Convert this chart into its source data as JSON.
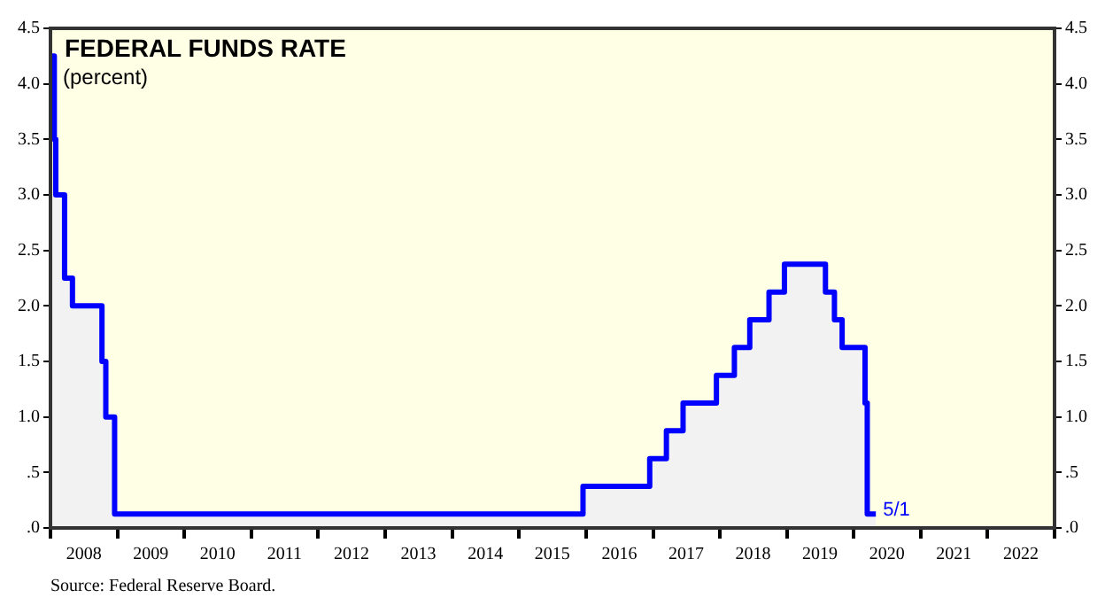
{
  "chart_data": {
    "type": "area",
    "title": "FEDERAL FUNDS RATE",
    "subtitle": "(percent)",
    "x": [
      "2008-01-01",
      "2008-01-22",
      "2008-01-22",
      "2008-01-30",
      "2008-01-30",
      "2008-03-18",
      "2008-03-18",
      "2008-04-30",
      "2008-04-30",
      "2008-10-08",
      "2008-10-08",
      "2008-10-29",
      "2008-10-29",
      "2008-12-16",
      "2008-12-16",
      "2015-12-16",
      "2015-12-16",
      "2016-12-14",
      "2016-12-14",
      "2017-03-15",
      "2017-03-15",
      "2017-06-14",
      "2017-06-14",
      "2017-12-13",
      "2017-12-13",
      "2018-03-21",
      "2018-03-21",
      "2018-06-13",
      "2018-06-13",
      "2018-09-26",
      "2018-09-26",
      "2018-12-19",
      "2018-12-19",
      "2019-07-31",
      "2019-07-31",
      "2019-09-18",
      "2019-09-18",
      "2019-10-30",
      "2019-10-30",
      "2020-03-03",
      "2020-03-03",
      "2020-03-15",
      "2020-03-15",
      "2020-05-01"
    ],
    "series": [
      {
        "color": "#0000ff",
        "values": [
          4.25,
          4.25,
          3.5,
          3.5,
          3.0,
          3.0,
          2.25,
          2.25,
          2.0,
          2.0,
          1.5,
          1.5,
          1.0,
          1.0,
          0.125,
          0.125,
          0.375,
          0.375,
          0.625,
          0.625,
          0.875,
          0.875,
          1.125,
          1.125,
          1.375,
          1.375,
          1.625,
          1.625,
          1.875,
          1.875,
          2.125,
          2.125,
          2.375,
          2.375,
          2.125,
          2.125,
          1.875,
          1.875,
          1.625,
          1.625,
          1.125,
          1.125,
          0.125,
          0.125
        ]
      }
    ],
    "xlim": [
      "2008-01-01",
      "2023-01-01"
    ],
    "xticks": [
      {
        "value": "2008-01-01",
        "label": null
      },
      {
        "value": "2008-07-01",
        "label": "2008"
      },
      {
        "value": "2009-01-01",
        "label": null
      },
      {
        "value": "2009-07-01",
        "label": "2009"
      },
      {
        "value": "2010-01-01",
        "label": null
      },
      {
        "value": "2010-07-01",
        "label": "2010"
      },
      {
        "value": "2011-01-01",
        "label": null
      },
      {
        "value": "2011-07-01",
        "label": "2011"
      },
      {
        "value": "2012-01-01",
        "label": null
      },
      {
        "value": "2012-07-01",
        "label": "2012"
      },
      {
        "value": "2013-01-01",
        "label": null
      },
      {
        "value": "2013-07-01",
        "label": "2013"
      },
      {
        "value": "2014-01-01",
        "label": null
      },
      {
        "value": "2014-07-01",
        "label": "2014"
      },
      {
        "value": "2015-01-01",
        "label": null
      },
      {
        "value": "2015-07-01",
        "label": "2015"
      },
      {
        "value": "2016-01-01",
        "label": null
      },
      {
        "value": "2016-07-01",
        "label": "2016"
      },
      {
        "value": "2017-01-01",
        "label": null
      },
      {
        "value": "2017-07-01",
        "label": "2017"
      },
      {
        "value": "2018-01-01",
        "label": null
      },
      {
        "value": "2018-07-01",
        "label": "2018"
      },
      {
        "value": "2019-01-01",
        "label": null
      },
      {
        "value": "2019-07-01",
        "label": "2019"
      },
      {
        "value": "2020-01-01",
        "label": null
      },
      {
        "value": "2020-07-01",
        "label": "2020"
      },
      {
        "value": "2021-01-01",
        "label": null
      },
      {
        "value": "2021-07-01",
        "label": "2021"
      },
      {
        "value": "2022-01-01",
        "label": null
      },
      {
        "value": "2022-07-01",
        "label": "2022"
      },
      {
        "value": "2023-01-01",
        "label": null
      }
    ],
    "ylim": [
      0,
      4.5
    ],
    "yticks": [
      {
        "value": 0,
        "label": ".0"
      },
      {
        "value": 0.5,
        "label": ".5"
      },
      {
        "value": 1,
        "label": "1.0"
      },
      {
        "value": 1.5,
        "label": "1.5"
      },
      {
        "value": 2,
        "label": "2.0"
      },
      {
        "value": 2.5,
        "label": "2.5"
      },
      {
        "value": 3,
        "label": "3.0"
      },
      {
        "value": 3.5,
        "label": "3.5"
      },
      {
        "value": 4,
        "label": "4.0"
      },
      {
        "value": 4.5,
        "label": "4.5"
      }
    ],
    "y2lim": [
      0,
      4.5
    ],
    "y2ticks": [
      {
        "value": 0,
        "label": ".0"
      },
      {
        "value": 0.5,
        "label": ".5"
      },
      {
        "value": 1,
        "label": "1.0"
      },
      {
        "value": 1.5,
        "label": "1.5"
      },
      {
        "value": 2,
        "label": "2.0"
      },
      {
        "value": 2.5,
        "label": "2.5"
      },
      {
        "value": 3,
        "label": "3.0"
      },
      {
        "value": 3.5,
        "label": "3.5"
      },
      {
        "value": 4,
        "label": "4.0"
      },
      {
        "value": 4.5,
        "label": "4.5"
      }
    ],
    "annotations": [
      {
        "text": "5/1",
        "x": "2020-05-01",
        "y": 0.125
      },
      "Source: Federal Reserve Board."
    ],
    "grid": false,
    "legend": false,
    "marker": "none",
    "line_style": "solid"
  }
}
